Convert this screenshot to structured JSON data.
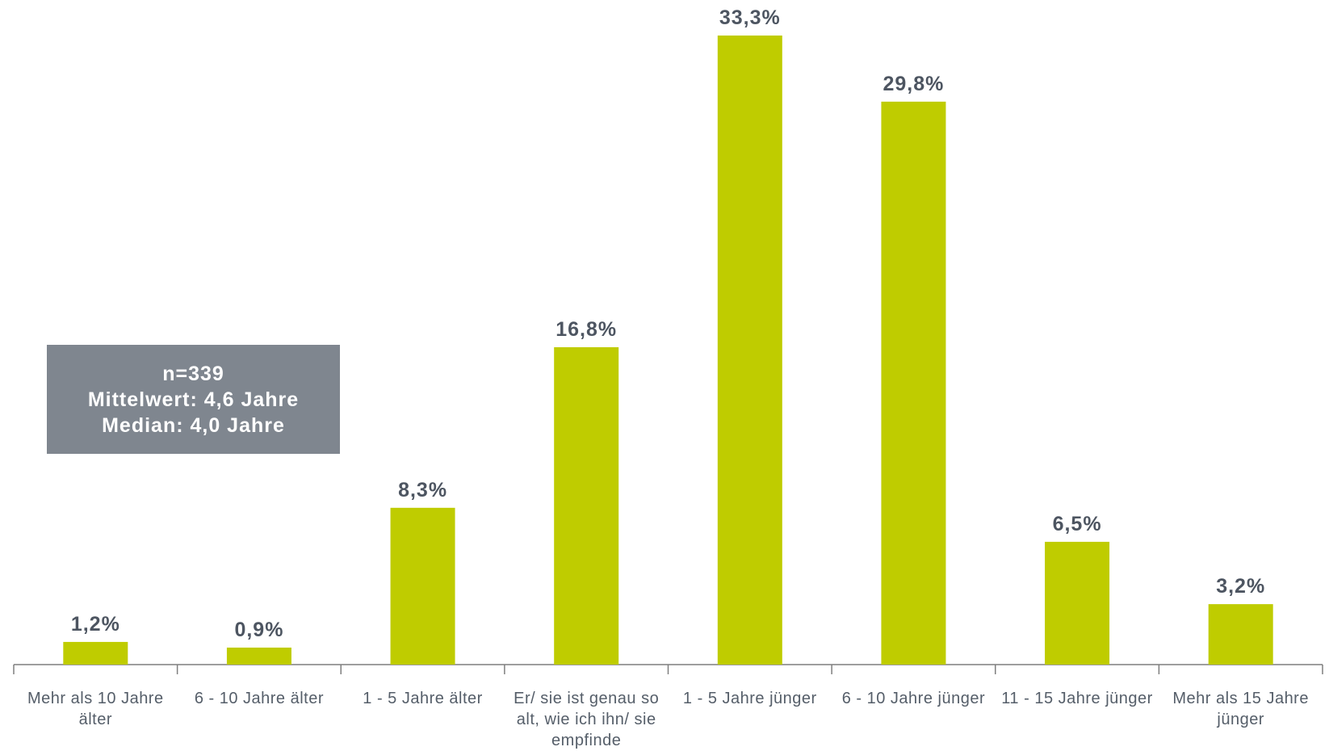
{
  "chart_data": {
    "type": "bar",
    "categories": [
      "Mehr als 10 Jahre älter",
      "6 - 10 Jahre älter",
      "1 - 5 Jahre älter",
      "Er/ sie ist genau so alt, wie ich ihn/ sie empfinde",
      "1 - 5 Jahre jünger",
      "6 - 10 Jahre jünger",
      "11 - 15 Jahre jünger",
      "Mehr als 15 Jahre jünger"
    ],
    "values": [
      1.2,
      0.9,
      8.3,
      16.8,
      33.3,
      29.8,
      6.5,
      3.2
    ],
    "value_labels": [
      "1,2%",
      "0,9%",
      "8,3%",
      "16,8%",
      "33,3%",
      "29,8%",
      "6,5%",
      "3,2%"
    ],
    "color": "#bfcc00",
    "annotations": [
      "n=339",
      "Mittelwert: 4,6 Jahre",
      "Median: 4,0 Jahre"
    ]
  }
}
